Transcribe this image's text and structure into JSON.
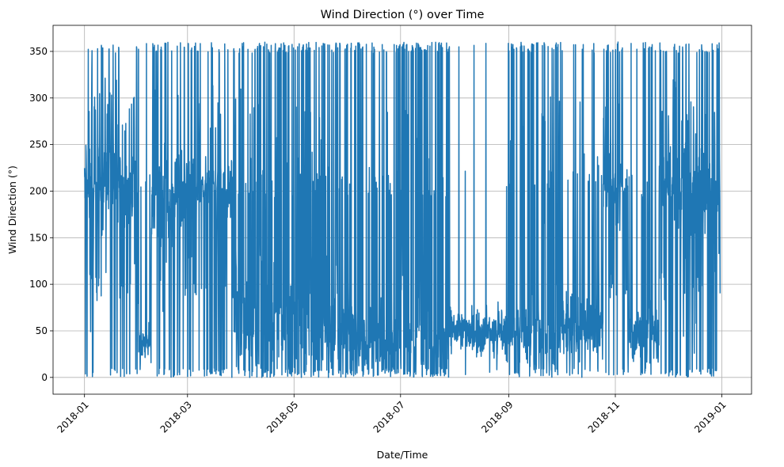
{
  "chart_data": {
    "type": "line",
    "title": "Wind Direction (°) over Time",
    "xlabel": "Date/Time",
    "ylabel": "Wind Direction (°)",
    "xlim": [
      "2017-12-14",
      "2019-01-18"
    ],
    "ylim": [
      -18,
      378
    ],
    "grid": true,
    "legend": "none",
    "series_color": "#1f77b4",
    "x_ticks": [
      "2018-01",
      "2018-03",
      "2018-05",
      "2018-07",
      "2018-09",
      "2018-11",
      "2019-01"
    ],
    "y_ticks": [
      0,
      50,
      100,
      150,
      200,
      250,
      300,
      350
    ],
    "series": [
      {
        "x_start": "2018-01-01",
        "x_end": "2018-12-31",
        "value_min": 0,
        "value_max": 360,
        "profile": [
          {
            "from": "2018-01-01",
            "to": "2018-02-01",
            "center": 205,
            "spread": 35,
            "wrap_rate": 0.35
          },
          {
            "from": "2018-02-01",
            "to": "2018-02-08",
            "center": 35,
            "spread": 15,
            "wrap_rate": 0.05
          },
          {
            "from": "2018-02-08",
            "to": "2018-02-26",
            "center": 195,
            "spread": 45,
            "wrap_rate": 0.3
          },
          {
            "from": "2018-02-26",
            "to": "2018-03-27",
            "center": 205,
            "spread": 25,
            "wrap_rate": 0.3
          },
          {
            "from": "2018-03-27",
            "to": "2018-06-01",
            "center": 60,
            "spread": 45,
            "wrap_rate": 0.45
          },
          {
            "from": "2018-06-01",
            "to": "2018-07-01",
            "center": 45,
            "spread": 30,
            "wrap_rate": 0.4
          },
          {
            "from": "2018-07-01",
            "to": "2018-07-29",
            "center": 40,
            "spread": 30,
            "wrap_rate": 0.7
          },
          {
            "from": "2018-07-29",
            "to": "2018-09-01",
            "center": 50,
            "spread": 20,
            "wrap_rate": 0.02
          },
          {
            "from": "2018-09-01",
            "to": "2018-10-01",
            "center": 45,
            "spread": 25,
            "wrap_rate": 0.4
          },
          {
            "from": "2018-10-01",
            "to": "2018-10-25",
            "center": 55,
            "spread": 25,
            "wrap_rate": 0.2
          },
          {
            "from": "2018-10-25",
            "to": "2018-11-08",
            "center": 205,
            "spread": 25,
            "wrap_rate": 0.3
          },
          {
            "from": "2018-11-08",
            "to": "2018-11-26",
            "center": 45,
            "spread": 25,
            "wrap_rate": 0.15
          },
          {
            "from": "2018-11-26",
            "to": "2018-12-31",
            "center": 200,
            "spread": 40,
            "wrap_rate": 0.45
          }
        ]
      }
    ]
  }
}
